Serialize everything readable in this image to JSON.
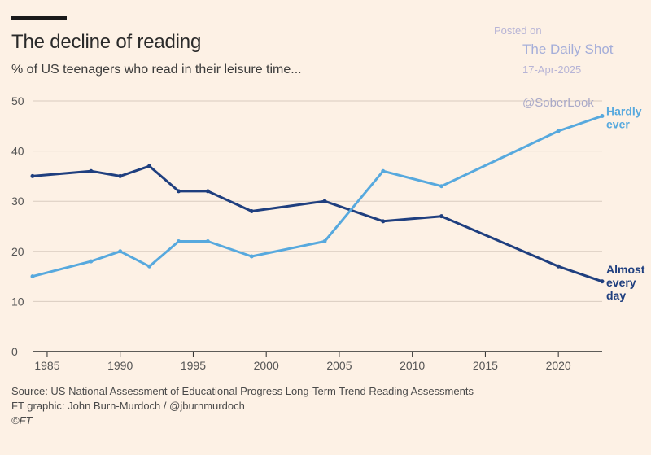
{
  "header": {
    "title": "The decline of reading",
    "subtitle": "% of US teenagers who read in their leisure time..."
  },
  "watermark": {
    "posted": "Posted on",
    "name": "The Daily Shot",
    "date": "17-Apr-2025",
    "handle": "@SoberLook"
  },
  "footer": {
    "source": "Source: US National Assessment of Educational Progress Long-Term Trend Reading Assessments",
    "credit": "FT graphic: John Burn-Murdoch / @jburnmurdoch",
    "copyright": "©FT"
  },
  "colors": {
    "background": "#fdf1e5",
    "almost_every_day": "#1f3f7f",
    "hardly_ever": "#57a9de",
    "grid": "#d9ccc0",
    "axis": "#2a2a2a"
  },
  "chart_data": {
    "type": "line",
    "title": "The decline of reading",
    "subtitle": "% of US teenagers who read in their leisure time...",
    "xlim": [
      1984,
      2023
    ],
    "ylim": [
      0,
      50
    ],
    "xticks": [
      1985,
      1990,
      1995,
      2000,
      2005,
      2010,
      2015,
      2020
    ],
    "yticks": [
      0,
      10,
      20,
      30,
      40,
      50
    ],
    "grid": true,
    "legend": "direct labels at line ends",
    "series": [
      {
        "name": "Almost every day",
        "label_lines": [
          "Almost",
          "every",
          "day"
        ],
        "color": "#1f3f7f",
        "x": [
          1984,
          1988,
          1990,
          1992,
          1994,
          1996,
          1999,
          2004,
          2008,
          2012,
          2020,
          2023
        ],
        "y": [
          35,
          36,
          35,
          37,
          32,
          32,
          28,
          30,
          26,
          27,
          17,
          14
        ]
      },
      {
        "name": "Hardly ever",
        "label_lines": [
          "Hardly",
          "ever"
        ],
        "color": "#57a9de",
        "x": [
          1984,
          1988,
          1990,
          1992,
          1994,
          1996,
          1999,
          2004,
          2008,
          2012,
          2020,
          2023
        ],
        "y": [
          15,
          18,
          20,
          17,
          22,
          22,
          19,
          22,
          36,
          33,
          44,
          47
        ]
      }
    ]
  }
}
